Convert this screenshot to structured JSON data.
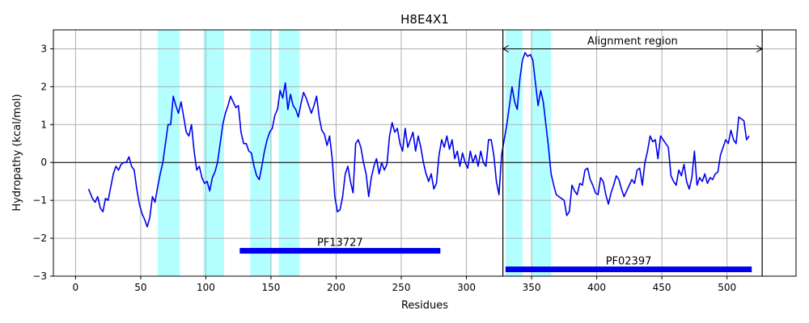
{
  "colors": {
    "line": "#0000ee",
    "span": "#b3ffff",
    "domain_bar": "#0000ee",
    "grid": "#b0b0b0",
    "axes": "#000000"
  },
  "chart_data": {
    "type": "line",
    "title": "H8E4X1",
    "xlabel": "Residues",
    "ylabel": "Hydropathy (kcal/mol)",
    "xlim": [
      -17,
      553
    ],
    "ylim": [
      -3,
      3.5
    ],
    "x_ticks": [
      0,
      50,
      100,
      150,
      200,
      250,
      300,
      350,
      400,
      450,
      500
    ],
    "y_ticks": [
      -3,
      -2,
      -1,
      0,
      1,
      2,
      3
    ],
    "x_tick_labels": [
      "0",
      "50",
      "100",
      "150",
      "200",
      "250",
      "300",
      "350",
      "400",
      "450",
      "500"
    ],
    "y_tick_labels": [
      "−3",
      "−2",
      "−1",
      "0",
      "1",
      "2",
      "3"
    ],
    "grid": true,
    "baseline_y": 0,
    "series": [
      {
        "points": [
          [
            10,
            -0.7
          ],
          [
            13,
            -0.95
          ],
          [
            15,
            -1.05
          ],
          [
            17,
            -0.9
          ],
          [
            19,
            -1.2
          ],
          [
            21,
            -1.3
          ],
          [
            23,
            -0.95
          ],
          [
            25,
            -1.0
          ],
          [
            27,
            -0.65
          ],
          [
            29,
            -0.3
          ],
          [
            31,
            -0.1
          ],
          [
            33,
            -0.2
          ],
          [
            35,
            -0.05
          ],
          [
            37,
            0.0
          ],
          [
            39,
            0.0
          ],
          [
            41,
            0.15
          ],
          [
            43,
            -0.1
          ],
          [
            45,
            -0.2
          ],
          [
            47,
            -0.7
          ],
          [
            49,
            -1.1
          ],
          [
            51,
            -1.35
          ],
          [
            53,
            -1.5
          ],
          [
            55,
            -1.7
          ],
          [
            57,
            -1.45
          ],
          [
            59,
            -0.9
          ],
          [
            61,
            -1.05
          ],
          [
            63,
            -0.65
          ],
          [
            65,
            -0.3
          ],
          [
            67,
            0.0
          ],
          [
            69,
            0.5
          ],
          [
            71,
            1.0
          ],
          [
            73,
            1.0
          ],
          [
            75,
            1.75
          ],
          [
            77,
            1.5
          ],
          [
            79,
            1.3
          ],
          [
            81,
            1.6
          ],
          [
            83,
            1.2
          ],
          [
            85,
            0.8
          ],
          [
            87,
            0.7
          ],
          [
            89,
            1.0
          ],
          [
            91,
            0.3
          ],
          [
            93,
            -0.2
          ],
          [
            95,
            -0.1
          ],
          [
            97,
            -0.4
          ],
          [
            99,
            -0.55
          ],
          [
            101,
            -0.5
          ],
          [
            103,
            -0.75
          ],
          [
            105,
            -0.4
          ],
          [
            107,
            -0.25
          ],
          [
            109,
            0.0
          ],
          [
            111,
            0.5
          ],
          [
            113,
            1.0
          ],
          [
            115,
            1.3
          ],
          [
            117,
            1.5
          ],
          [
            119,
            1.75
          ],
          [
            121,
            1.6
          ],
          [
            123,
            1.45
          ],
          [
            125,
            1.5
          ],
          [
            127,
            0.8
          ],
          [
            129,
            0.5
          ],
          [
            131,
            0.5
          ],
          [
            133,
            0.3
          ],
          [
            135,
            0.25
          ],
          [
            137,
            -0.1
          ],
          [
            139,
            -0.35
          ],
          [
            141,
            -0.45
          ],
          [
            143,
            -0.1
          ],
          [
            145,
            0.3
          ],
          [
            147,
            0.6
          ],
          [
            149,
            0.8
          ],
          [
            151,
            0.9
          ],
          [
            153,
            1.25
          ],
          [
            155,
            1.4
          ],
          [
            157,
            1.9
          ],
          [
            159,
            1.7
          ],
          [
            161,
            2.1
          ],
          [
            163,
            1.4
          ],
          [
            165,
            1.8
          ],
          [
            167,
            1.5
          ],
          [
            169,
            1.4
          ],
          [
            171,
            1.2
          ],
          [
            173,
            1.55
          ],
          [
            175,
            1.85
          ],
          [
            177,
            1.7
          ],
          [
            179,
            1.5
          ],
          [
            181,
            1.3
          ],
          [
            183,
            1.5
          ],
          [
            185,
            1.75
          ],
          [
            187,
            1.2
          ],
          [
            189,
            0.85
          ],
          [
            191,
            0.75
          ],
          [
            193,
            0.45
          ],
          [
            195,
            0.7
          ],
          [
            197,
            0.1
          ],
          [
            199,
            -0.9
          ],
          [
            201,
            -1.3
          ],
          [
            203,
            -1.25
          ],
          [
            205,
            -0.9
          ],
          [
            207,
            -0.3
          ],
          [
            209,
            -0.1
          ],
          [
            211,
            -0.5
          ],
          [
            213,
            -0.8
          ],
          [
            215,
            0.5
          ],
          [
            217,
            0.6
          ],
          [
            219,
            0.4
          ],
          [
            221,
            0.0
          ],
          [
            223,
            -0.3
          ],
          [
            225,
            -0.9
          ],
          [
            227,
            -0.4
          ],
          [
            229,
            -0.1
          ],
          [
            231,
            0.1
          ],
          [
            233,
            -0.3
          ],
          [
            235,
            0.0
          ],
          [
            237,
            -0.2
          ],
          [
            239,
            -0.05
          ],
          [
            241,
            0.7
          ],
          [
            243,
            1.05
          ],
          [
            245,
            0.8
          ],
          [
            247,
            0.9
          ],
          [
            249,
            0.5
          ],
          [
            251,
            0.3
          ],
          [
            253,
            0.9
          ],
          [
            255,
            0.4
          ],
          [
            257,
            0.6
          ],
          [
            259,
            0.8
          ],
          [
            261,
            0.3
          ],
          [
            263,
            0.7
          ],
          [
            265,
            0.4
          ],
          [
            267,
            0.0
          ],
          [
            269,
            -0.3
          ],
          [
            271,
            -0.5
          ],
          [
            273,
            -0.3
          ],
          [
            275,
            -0.7
          ],
          [
            277,
            -0.55
          ],
          [
            279,
            0.2
          ],
          [
            281,
            0.6
          ],
          [
            283,
            0.4
          ],
          [
            285,
            0.7
          ],
          [
            287,
            0.35
          ],
          [
            289,
            0.6
          ],
          [
            291,
            0.1
          ],
          [
            293,
            0.3
          ],
          [
            295,
            -0.1
          ],
          [
            297,
            0.25
          ],
          [
            299,
            0.0
          ],
          [
            301,
            -0.15
          ],
          [
            303,
            0.3
          ],
          [
            305,
            0.0
          ],
          [
            307,
            0.2
          ],
          [
            309,
            -0.1
          ],
          [
            311,
            0.3
          ],
          [
            313,
            0.0
          ],
          [
            315,
            -0.1
          ],
          [
            317,
            0.6
          ],
          [
            319,
            0.6
          ],
          [
            321,
            0.2
          ],
          [
            323,
            -0.5
          ],
          [
            325,
            -0.85
          ],
          [
            327,
            0.2
          ],
          [
            329,
            0.6
          ],
          [
            331,
            1.0
          ],
          [
            333,
            1.5
          ],
          [
            335,
            2.0
          ],
          [
            337,
            1.6
          ],
          [
            339,
            1.4
          ],
          [
            341,
            2.2
          ],
          [
            343,
            2.7
          ],
          [
            345,
            2.9
          ],
          [
            347,
            2.8
          ],
          [
            349,
            2.85
          ],
          [
            351,
            2.7
          ],
          [
            353,
            2.1
          ],
          [
            355,
            1.5
          ],
          [
            357,
            1.9
          ],
          [
            359,
            1.6
          ],
          [
            361,
            1.0
          ],
          [
            363,
            0.4
          ],
          [
            365,
            -0.3
          ],
          [
            367,
            -0.6
          ],
          [
            369,
            -0.85
          ],
          [
            371,
            -0.9
          ],
          [
            373,
            -0.95
          ],
          [
            375,
            -1.0
          ],
          [
            377,
            -1.4
          ],
          [
            379,
            -1.3
          ],
          [
            381,
            -0.6
          ],
          [
            383,
            -0.75
          ],
          [
            385,
            -0.85
          ],
          [
            387,
            -0.55
          ],
          [
            389,
            -0.6
          ],
          [
            391,
            -0.2
          ],
          [
            393,
            -0.15
          ],
          [
            395,
            -0.45
          ],
          [
            397,
            -0.6
          ],
          [
            399,
            -0.8
          ],
          [
            401,
            -0.85
          ],
          [
            403,
            -0.4
          ],
          [
            405,
            -0.5
          ],
          [
            407,
            -0.85
          ],
          [
            409,
            -1.1
          ],
          [
            411,
            -0.8
          ],
          [
            413,
            -0.6
          ],
          [
            415,
            -0.35
          ],
          [
            417,
            -0.45
          ],
          [
            419,
            -0.7
          ],
          [
            421,
            -0.9
          ],
          [
            423,
            -0.75
          ],
          [
            425,
            -0.6
          ],
          [
            427,
            -0.45
          ],
          [
            429,
            -0.55
          ],
          [
            431,
            -0.2
          ],
          [
            433,
            -0.15
          ],
          [
            435,
            -0.6
          ],
          [
            437,
            0.0
          ],
          [
            439,
            0.3
          ],
          [
            441,
            0.7
          ],
          [
            443,
            0.55
          ],
          [
            445,
            0.6
          ],
          [
            447,
            0.1
          ],
          [
            449,
            0.7
          ],
          [
            451,
            0.6
          ],
          [
            453,
            0.5
          ],
          [
            455,
            0.4
          ],
          [
            457,
            -0.35
          ],
          [
            459,
            -0.5
          ],
          [
            461,
            -0.6
          ],
          [
            463,
            -0.2
          ],
          [
            465,
            -0.35
          ],
          [
            467,
            -0.05
          ],
          [
            469,
            -0.5
          ],
          [
            471,
            -0.7
          ],
          [
            473,
            -0.4
          ],
          [
            475,
            0.3
          ],
          [
            477,
            -0.6
          ],
          [
            479,
            -0.4
          ],
          [
            481,
            -0.5
          ],
          [
            483,
            -0.3
          ],
          [
            485,
            -0.55
          ],
          [
            487,
            -0.4
          ],
          [
            489,
            -0.45
          ],
          [
            491,
            -0.3
          ],
          [
            493,
            -0.25
          ],
          [
            495,
            0.2
          ],
          [
            497,
            0.4
          ],
          [
            499,
            0.6
          ],
          [
            501,
            0.5
          ],
          [
            503,
            0.85
          ],
          [
            505,
            0.6
          ],
          [
            507,
            0.5
          ],
          [
            509,
            1.2
          ],
          [
            511,
            1.15
          ],
          [
            513,
            1.1
          ],
          [
            515,
            0.6
          ],
          [
            517,
            0.7
          ]
        ]
      }
    ],
    "highlight_spans": [
      [
        63,
        80
      ],
      [
        98,
        114
      ],
      [
        134,
        150
      ],
      [
        156,
        172
      ],
      [
        330,
        343
      ],
      [
        350,
        365
      ]
    ],
    "vertical_lines": [
      328,
      527
    ],
    "annotations": [
      {
        "kind": "double-arrow",
        "text": "Alignment region",
        "x_start": 328,
        "x_end": 527,
        "y": 3.0,
        "label_y": 3.12
      }
    ],
    "domains": [
      {
        "name": "PF13727",
        "start": 126,
        "end": 280,
        "y": -2.33,
        "label_y": -2.2
      },
      {
        "name": "PF02397",
        "start": 330,
        "end": 519,
        "y": -2.82,
        "label_y": -2.69
      }
    ]
  }
}
